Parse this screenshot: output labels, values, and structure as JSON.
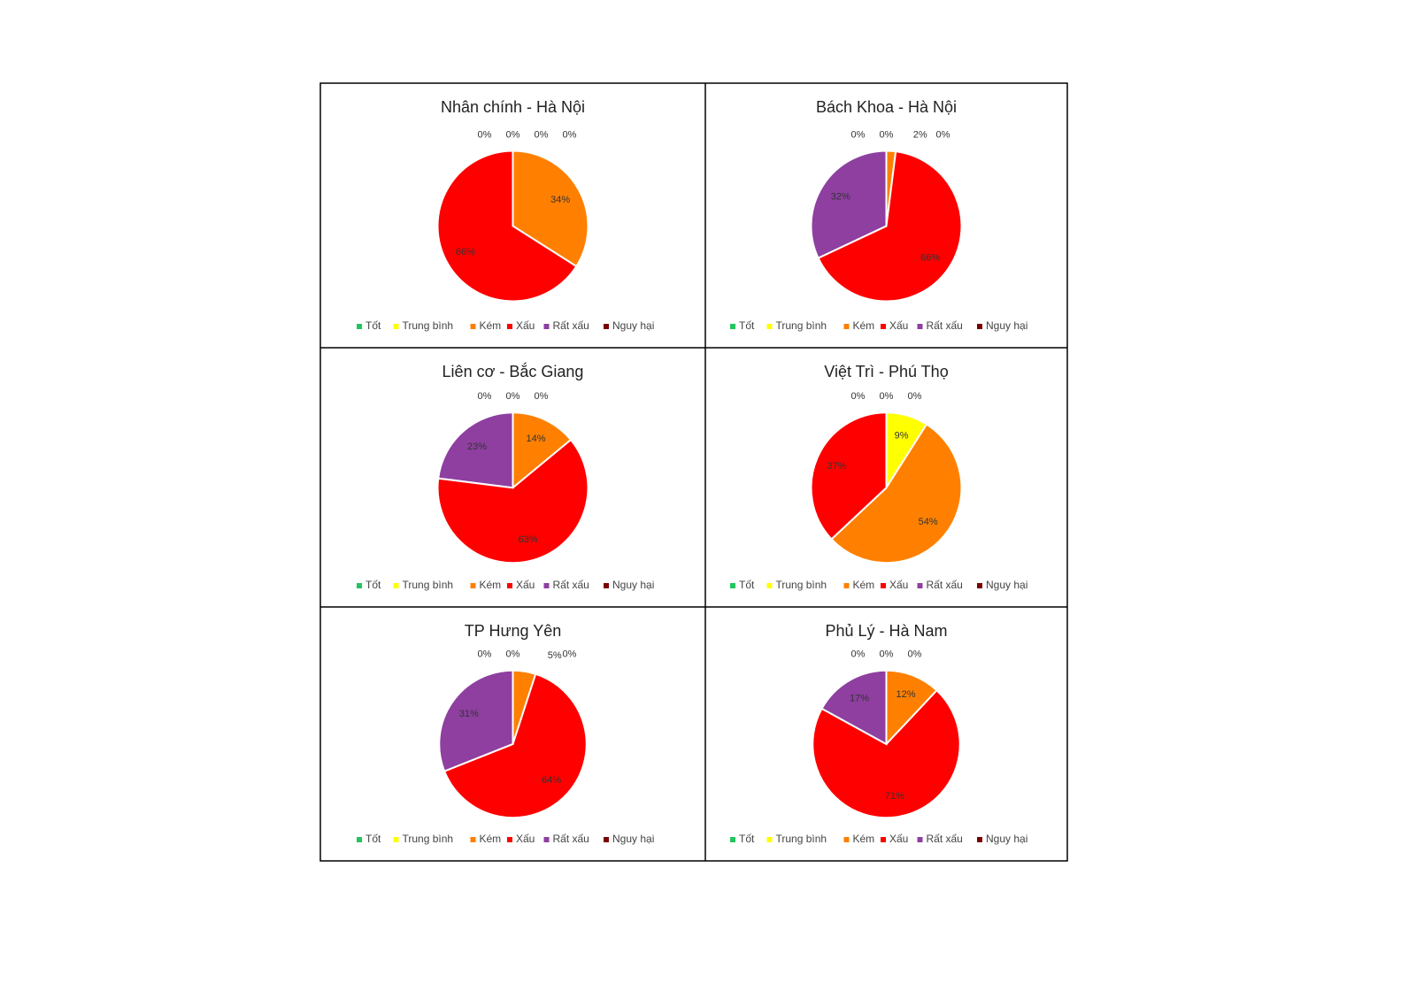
{
  "chart_data": [
    {
      "type": "pie",
      "title": "Nhân chính - Hà Nội",
      "categories": [
        "Tốt",
        "Trung bình",
        "Kém",
        "Xấu",
        "Rất xấu",
        "Nguy hại"
      ],
      "colors": [
        "#22c55e",
        "#ffff00",
        "#ff8000",
        "#ff0000",
        "#8e3fa0",
        "#7a0000"
      ],
      "values": [
        0,
        0,
        34,
        66,
        0,
        0
      ],
      "value_labels": [
        "0%",
        "0%",
        "34%",
        "66%",
        "0%",
        "0%"
      ]
    },
    {
      "type": "pie",
      "title": "Bách Khoa - Hà Nội",
      "categories": [
        "Tốt",
        "Trung bình",
        "Kém",
        "Xấu",
        "Rất xấu",
        "Nguy hại"
      ],
      "colors": [
        "#22c55e",
        "#ffff00",
        "#ff8000",
        "#ff0000",
        "#8e3fa0",
        "#7a0000"
      ],
      "values": [
        0,
        0,
        2,
        66,
        32,
        0
      ],
      "value_labels": [
        "0%",
        "0%",
        "2%",
        "66%",
        "32%",
        "0%"
      ]
    },
    {
      "type": "pie",
      "title": "Liên cơ - Bắc Giang",
      "categories": [
        "Tốt",
        "Trung bình",
        "Kém",
        "Xấu",
        "Rất xấu",
        "Nguy hại"
      ],
      "colors": [
        "#22c55e",
        "#ffff00",
        "#ff8000",
        "#ff0000",
        "#8e3fa0",
        "#7a0000"
      ],
      "values": [
        0,
        0,
        14,
        63,
        23,
        0
      ],
      "value_labels": [
        "0%",
        "0%",
        "14%",
        "63%",
        "23%",
        "0%"
      ]
    },
    {
      "type": "pie",
      "title": "Việt Trì - Phú Thọ",
      "categories": [
        "Tốt",
        "Trung bình",
        "Kém",
        "Xấu",
        "Rất xấu",
        "Nguy hại"
      ],
      "colors": [
        "#22c55e",
        "#ffff00",
        "#ff8000",
        "#ff0000",
        "#8e3fa0",
        "#7a0000"
      ],
      "values": [
        0,
        9,
        54,
        37,
        0,
        0
      ],
      "value_labels": [
        "0%",
        "9%",
        "54%",
        "37%",
        "0%",
        "0%"
      ]
    },
    {
      "type": "pie",
      "title": "TP Hưng Yên",
      "categories": [
        "Tốt",
        "Trung bình",
        "Kém",
        "Xấu",
        "Rất xấu",
        "Nguy hại"
      ],
      "colors": [
        "#22c55e",
        "#ffff00",
        "#ff8000",
        "#ff0000",
        "#8e3fa0",
        "#7a0000"
      ],
      "values": [
        0,
        0,
        5,
        64,
        31,
        0
      ],
      "value_labels": [
        "0%",
        "0%",
        "5%",
        "64%",
        "31%",
        "0%"
      ]
    },
    {
      "type": "pie",
      "title": "Phủ Lý - Hà Nam",
      "categories": [
        "Tốt",
        "Trung bình",
        "Kém",
        "Xấu",
        "Rất xấu",
        "Nguy hại"
      ],
      "colors": [
        "#22c55e",
        "#ffff00",
        "#ff8000",
        "#ff0000",
        "#8e3fa0",
        "#7a0000"
      ],
      "values": [
        0,
        0,
        12,
        71,
        17,
        0
      ],
      "value_labels": [
        "0%",
        "0%",
        "12%",
        "71%",
        "17%",
        "0%"
      ]
    }
  ]
}
